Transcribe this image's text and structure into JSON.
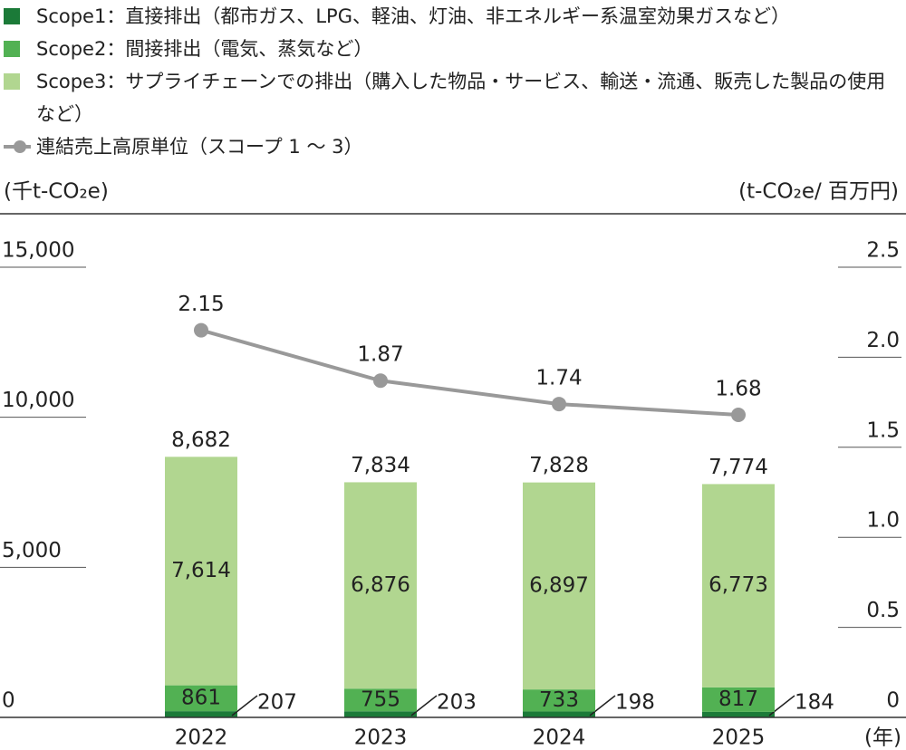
{
  "chart_data": {
    "type": "bar",
    "stacked": true,
    "categories": [
      "2022",
      "2023",
      "2024",
      "2025"
    ],
    "series": [
      {
        "name": "Scope1：直接排出（都市ガス、LPG、軽油、灯油、非エネルギー系温室効果ガスなど）",
        "color": "#1b7a38",
        "values": [
          207,
          203,
          198,
          184
        ]
      },
      {
        "name": "Scope2：間接排出（電気、蒸気など）",
        "color": "#52b153",
        "values": [
          861,
          755,
          733,
          817
        ]
      },
      {
        "name": "Scope3：サプライチェーンでの排出（購入した物品・サービス、輸送・流通、販売した製品の使用など）",
        "color": "#b1d690",
        "values": [
          7614,
          6876,
          6897,
          6773
        ],
        "value_labels": [
          "7,614",
          "6,876",
          "6,897",
          "6,773"
        ]
      },
      {
        "name": "連結売上高原単位（スコープ 1 ～ 3）",
        "type": "line",
        "axis": "y2",
        "color": "#999999",
        "values": [
          2.15,
          1.87,
          1.74,
          1.68
        ]
      }
    ],
    "totals": [
      8682,
      7834,
      7828,
      7774
    ],
    "totals_labels": [
      "8,682",
      "7,834",
      "7,828",
      "7,774"
    ],
    "ylabel": "(千t-CO₂e)",
    "y2label": "(t-CO₂e/ 百万円)",
    "xlabel": "(年)",
    "ylim": [
      0,
      15000
    ],
    "yticks": [
      0,
      {
        "value": 5000,
        "label": "5,000"
      },
      {
        "value": 10000,
        "label": "10,000"
      },
      {
        "value": 15000,
        "label": "15,000"
      }
    ],
    "y2lim": [
      0,
      2.5
    ],
    "y2ticks": [
      0,
      0.5,
      {
        "value": 1,
        "label": "1.0"
      },
      1.5,
      {
        "value": 2,
        "label": "2.0"
      },
      2.5
    ]
  }
}
